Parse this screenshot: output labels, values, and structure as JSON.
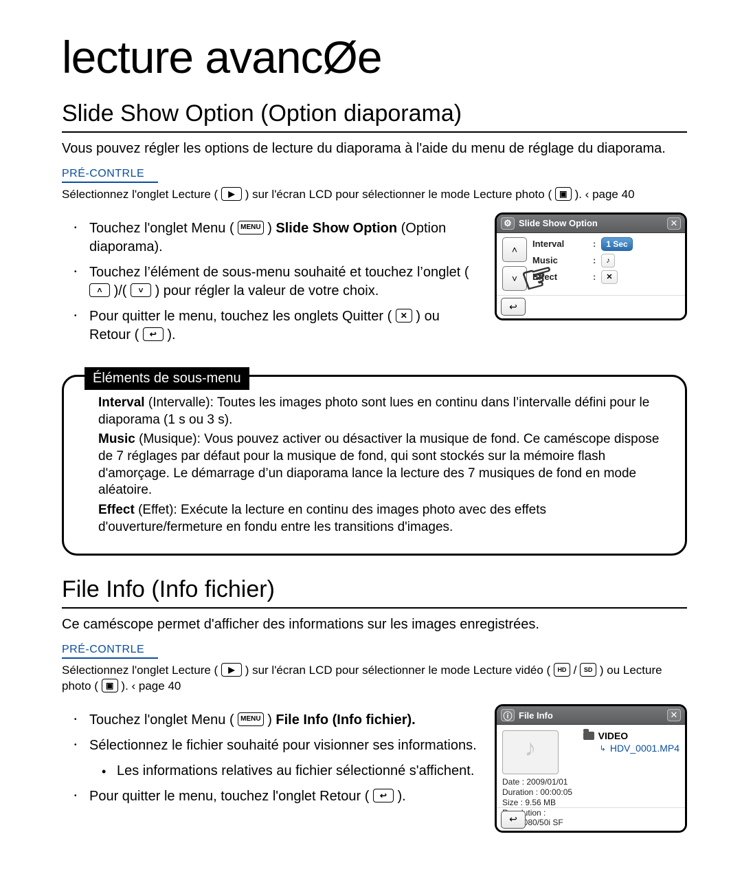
{
  "page": {
    "title": "lecture avancØe"
  },
  "section1": {
    "heading": "Slide Show Option (Option diaporama)",
    "intro": "Vous pouvez régler les options de lecture du diaporama à l'aide du menu de réglage du diaporama.",
    "precheck_label": "PRÉ-CONTRLE",
    "precheck_text_a": "Sélectionnez l'onglet Lecture (",
    "precheck_text_b": ") sur l'écran LCD pour sélectionner le mode Lecture photo (",
    "precheck_text_c": ").  ‹ page 40",
    "step1_a": "Touchez l'onglet Menu (",
    "step1_b": ")  ",
    "step1_bold": "Slide Show Option",
    "step1_c": " (Option diaporama).",
    "step2_a": "Touchez l’élément de sous-menu souhaité et touchez l’onglet (",
    "step2_b": ")/(",
    "step2_c": ") pour régler la valeur de votre choix.",
    "step3_a": "Pour quitter le menu, touchez les onglets Quitter (",
    "step3_b": ") ou Retour (",
    "step3_c": ")."
  },
  "submenu": {
    "tab": "Éléments de sous-menu",
    "interval_label": "Interval",
    "interval_text": " (Intervalle): Toutes les images photo sont lues en continu dans l’intervalle défini pour le diaporama (1 s ou 3 s).",
    "music_label": "Music",
    "music_text": " (Musique): Vous pouvez activer ou désactiver la musique de fond. Ce caméscope dispose de 7 réglages par défaut pour la musique de fond, qui sont stockés sur la mémoire flash d'amorçage. Le démarrage d’un diaporama lance la lecture des 7 musiques de fond en mode aléatoire.",
    "effect_label": "Effect",
    "effect_text": " (Effet): Exécute la lecture en continu des images photo avec des effets d'ouverture/fermeture en fondu entre les transitions d'images."
  },
  "screen_ss": {
    "title": "Slide Show Option",
    "rows": [
      {
        "label": "Interval",
        "value": "1 Sec"
      },
      {
        "label": "Music",
        "note": "♪"
      },
      {
        "label": "Effect",
        "note": "✕"
      }
    ]
  },
  "section2": {
    "heading": "File Info (Info fichier)",
    "intro": "Ce caméscope permet d'afficher des informations sur les images enregistrées.",
    "precheck_label": "PRÉ-CONTRLE",
    "precheck_a": "Sélectionnez l'onglet Lecture (",
    "precheck_b": ") sur l'écran LCD pour sélectionner le mode Lecture vidéo (",
    "precheck_c": " /",
    "precheck_d": " ) ou Lecture photo (",
    "precheck_e": ").  ‹ page 40",
    "step1_a": "Touchez l'onglet Menu (",
    "step1_b": ")  ",
    "step1_bold": "File Info (Info fichier).",
    "step2": "Sélectionnez le fichier souhaité pour visionner ses informations.",
    "step2_sub": "Les informations relatives au fichier sélectionné s'affichent.",
    "step3_a": "Pour quitter le menu, touchez l'onglet Retour (",
    "step3_b": ")."
  },
  "screen_fi": {
    "title": "File Info",
    "folder": "VIDEO",
    "file": "HDV_0001.MP4",
    "meta": {
      "date_label": "Date",
      "date": "2009/01/01",
      "dur_label": "Duration",
      "dur": "00:00:05",
      "size_label": "Size",
      "size": "9.56 MB",
      "res_label": "Resolution",
      "res": "[HD]1080/50i SF"
    },
    "hd_tag": "HD",
    "sd_tag": "SD"
  },
  "icons": {
    "menu": "MENU",
    "play": "▶",
    "photo": "▣",
    "up": "˄",
    "down": "˅",
    "close": "✕",
    "back": "↩",
    "gear": "⚙"
  },
  "colors": {
    "link": "#0a4ea0",
    "screen_hdr_top": "#757779",
    "screen_hdr_bot": "#5b5d5f",
    "highlight": "#2b6aa8"
  }
}
